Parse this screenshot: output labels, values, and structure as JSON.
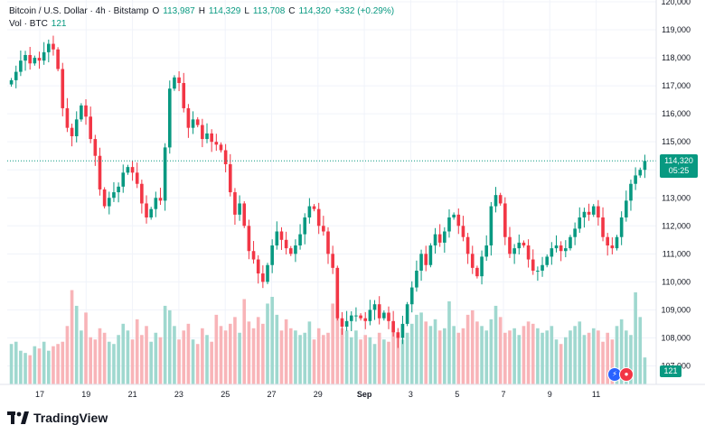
{
  "legend": {
    "symbol": "Bitcoin / U.S. Dollar · 4h · Bitstamp",
    "o_label": "O",
    "o_value": "113,987",
    "h_label": "H",
    "h_value": "114,329",
    "l_label": "L",
    "l_value": "113,708",
    "c_label": "C",
    "c_value": "114,320",
    "change": "+332 (+0.29%)",
    "vol_label": "Vol · BTC",
    "vol_value": "121"
  },
  "price_tag": {
    "price": "114,320",
    "countdown": "05:25"
  },
  "volume_tag": "121",
  "brand": {
    "name": "TradingView"
  },
  "colors": {
    "up": "#089981",
    "down": "#f23645",
    "up_vol": "#9fd8cf",
    "down_vol": "#f8b4b8",
    "grid": "#f0f3fa"
  },
  "chart_data": {
    "type": "candlestick",
    "interval": "4h",
    "ylim": [
      106500,
      120000
    ],
    "y_ticks": [
      "107,000",
      "108,000",
      "109,000",
      "110,000",
      "111,000",
      "112,000",
      "113,000",
      "114,000",
      "115,000",
      "116,000",
      "117,000",
      "118,000",
      "119,000",
      "120,000"
    ],
    "x_ticks": [
      "17",
      "19",
      "21",
      "23",
      "25",
      "27",
      "29",
      "Sep",
      "3",
      "5",
      "7",
      "9",
      "11"
    ],
    "current_price": 114320,
    "grid": true,
    "close": [
      117200,
      117500,
      117900,
      118100,
      117800,
      118000,
      117900,
      118200,
      118500,
      118300,
      117600,
      116200,
      115500,
      115200,
      115800,
      116300,
      115900,
      115100,
      114500,
      113300,
      112700,
      113000,
      113200,
      113400,
      113900,
      114100,
      113900,
      113500,
      112800,
      112300,
      112600,
      113000,
      112900,
      114800,
      116900,
      117300,
      117100,
      116200,
      115500,
      115800,
      115600,
      115100,
      115300,
      115000,
      114900,
      114700,
      114200,
      113200,
      112400,
      112800,
      112000,
      111100,
      110800,
      110300,
      110000,
      110600,
      111300,
      111800,
      111500,
      111200,
      111000,
      111300,
      111700,
      112300,
      112700,
      112600,
      112000,
      111800,
      111000,
      110500,
      108700,
      108400,
      108600,
      108800,
      108800,
      108700,
      108600,
      109000,
      109200,
      108700,
      108900,
      108600,
      108200,
      108000,
      108500,
      109200,
      109800,
      110400,
      111000,
      110600,
      111300,
      111700,
      111400,
      111800,
      112300,
      112400,
      112000,
      111600,
      111000,
      110500,
      110200,
      110900,
      111300,
      112700,
      113100,
      112800,
      111600,
      111000,
      111200,
      111400,
      111300,
      110800,
      110400,
      110400,
      110600,
      110900,
      111200,
      111300,
      111100,
      111200,
      111600,
      111900,
      112300,
      112500,
      112400,
      112700,
      112300,
      111600,
      111300,
      111200,
      111600,
      112300,
      112900,
      113500,
      113800,
      114000,
      114320
    ],
    "volume": [
      36,
      38,
      30,
      28,
      26,
      34,
      32,
      38,
      30,
      34,
      36,
      38,
      52,
      84,
      70,
      48,
      64,
      42,
      40,
      50,
      46,
      38,
      36,
      44,
      54,
      48,
      40,
      58,
      44,
      52,
      38,
      46,
      42,
      70,
      66,
      52,
      40,
      48,
      54,
      40,
      36,
      50,
      44,
      38,
      62,
      52,
      48,
      54,
      60,
      46,
      76,
      56,
      50,
      60,
      54,
      72,
      78,
      62,
      48,
      58,
      50,
      48,
      44,
      46,
      56,
      40,
      50,
      44,
      46,
      72,
      76,
      50,
      48,
      42,
      48,
      40,
      44,
      42,
      36,
      46,
      40,
      38,
      52,
      44,
      40,
      46,
      54,
      62,
      64,
      56,
      52,
      58,
      48,
      50,
      74,
      52,
      46,
      50,
      62,
      66,
      56,
      52,
      48,
      58,
      70,
      60,
      46,
      48,
      50,
      44,
      52,
      56,
      54,
      50,
      46,
      48,
      52,
      40,
      36,
      42,
      48,
      52,
      56,
      44,
      46,
      50,
      48,
      38,
      46,
      40,
      52,
      58,
      48,
      44,
      82,
      60,
      24
    ]
  }
}
